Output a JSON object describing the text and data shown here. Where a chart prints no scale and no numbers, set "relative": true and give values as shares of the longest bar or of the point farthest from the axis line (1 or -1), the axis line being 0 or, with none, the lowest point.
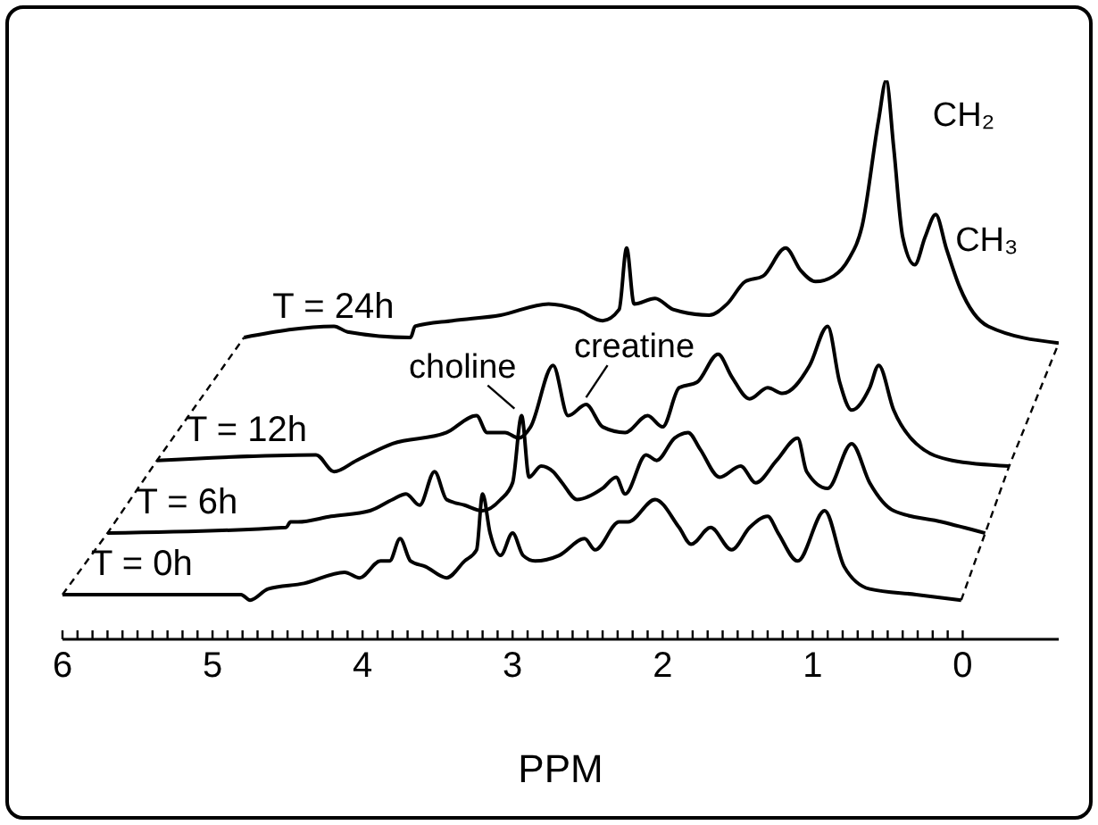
{
  "chart_data": {
    "type": "line",
    "relative": true,
    "xlabel": "PPM",
    "xlim": [
      6,
      -0.64
    ],
    "xticks": [
      6,
      {
        "value": 5.9,
        "label": null
      },
      {
        "value": 5.8,
        "label": null
      },
      {
        "value": 5.7,
        "label": null
      },
      {
        "value": 5.6,
        "label": null
      },
      {
        "value": 5.5,
        "label": null
      },
      {
        "value": 5.4,
        "label": null
      },
      {
        "value": 5.3,
        "label": null
      },
      {
        "value": 5.2,
        "label": null
      },
      {
        "value": 5.1,
        "label": null
      },
      5,
      {
        "value": 4.9,
        "label": null
      },
      {
        "value": 4.8,
        "label": null
      },
      {
        "value": 4.7,
        "label": null
      },
      {
        "value": 4.6,
        "label": null
      },
      {
        "value": 4.5,
        "label": null
      },
      {
        "value": 4.4,
        "label": null
      },
      {
        "value": 4.3,
        "label": null
      },
      {
        "value": 4.2,
        "label": null
      },
      {
        "value": 4.1,
        "label": null
      },
      4,
      {
        "value": 3.9,
        "label": null
      },
      {
        "value": 3.8,
        "label": null
      },
      {
        "value": 3.7,
        "label": null
      },
      {
        "value": 3.6,
        "label": null
      },
      {
        "value": 3.5,
        "label": null
      },
      {
        "value": 3.4,
        "label": null
      },
      {
        "value": 3.3,
        "label": null
      },
      {
        "value": 3.2,
        "label": null
      },
      {
        "value": 3.1,
        "label": null
      },
      3,
      {
        "value": 2.9,
        "label": null
      },
      {
        "value": 2.8,
        "label": null
      },
      {
        "value": 2.7,
        "label": null
      },
      {
        "value": 2.6,
        "label": null
      },
      {
        "value": 2.5,
        "label": null
      },
      {
        "value": 2.4,
        "label": null
      },
      {
        "value": 2.3,
        "label": null
      },
      {
        "value": 2.2,
        "label": null
      },
      {
        "value": 2.1,
        "label": null
      },
      2,
      {
        "value": 1.9,
        "label": null
      },
      {
        "value": 1.8,
        "label": null
      },
      {
        "value": 1.7,
        "label": null
      },
      {
        "value": 1.6,
        "label": null
      },
      {
        "value": 1.5,
        "label": null
      },
      {
        "value": 1.4,
        "label": null
      },
      {
        "value": 1.3,
        "label": null
      },
      {
        "value": 1.2,
        "label": null
      },
      {
        "value": 1.1,
        "label": null
      },
      1,
      {
        "value": 0.9,
        "label": null
      },
      {
        "value": 0.8,
        "label": null
      },
      {
        "value": 0.7,
        "label": null
      },
      {
        "value": 0.6,
        "label": null
      },
      {
        "value": 0.5,
        "label": null
      },
      {
        "value": 0.4,
        "label": null
      },
      {
        "value": 0.3,
        "label": null
      },
      {
        "value": 0.2,
        "label": null
      },
      {
        "value": 0.1,
        "label": null
      },
      0
    ],
    "series": [
      {
        "name": "T = 0h",
        "color": "#000000",
        "x": [
          6.0,
          4.81,
          4.75,
          4.63,
          4.39,
          4.12,
          4.02,
          3.88,
          3.82,
          3.75,
          3.68,
          3.58,
          3.44,
          3.32,
          3.24,
          3.2,
          3.15,
          3.08,
          3.0,
          2.93,
          2.85,
          2.69,
          2.52,
          2.45,
          2.29,
          2.23,
          2.05,
          1.89,
          1.81,
          1.68,
          1.54,
          1.42,
          1.3,
          1.23,
          1.1,
          0.92,
          0.79,
          0.62,
          0.31,
          0.01
        ],
        "values": [
          0.08,
          0.08,
          0.07,
          0.09,
          0.1,
          0.12,
          0.11,
          0.14,
          0.14,
          0.18,
          0.14,
          0.13,
          0.11,
          0.14,
          0.16,
          0.26,
          0.19,
          0.15,
          0.19,
          0.15,
          0.14,
          0.15,
          0.18,
          0.16,
          0.21,
          0.21,
          0.25,
          0.2,
          0.17,
          0.2,
          0.16,
          0.2,
          0.22,
          0.19,
          0.14,
          0.23,
          0.13,
          0.09,
          0.08,
          0.07
        ]
      },
      {
        "name": "T = 6h",
        "color": "#000000",
        "x": [
          5.7,
          4.51,
          4.48,
          4.43,
          4.21,
          3.95,
          3.8,
          3.71,
          3.62,
          3.52,
          3.44,
          3.32,
          3.2,
          3.08,
          3.0,
          2.94,
          2.89,
          2.81,
          2.73,
          2.67,
          2.57,
          2.4,
          2.31,
          2.25,
          2.11,
          2.04,
          1.92,
          1.83,
          1.75,
          1.62,
          1.48,
          1.38,
          1.24,
          1.1,
          1.04,
          0.9,
          0.74,
          0.62,
          0.46,
          0.14,
          -0.15
        ],
        "values": [
          0.19,
          0.2,
          0.21,
          0.21,
          0.22,
          0.23,
          0.25,
          0.26,
          0.24,
          0.3,
          0.25,
          0.24,
          0.23,
          0.25,
          0.28,
          0.4,
          0.29,
          0.31,
          0.3,
          0.28,
          0.25,
          0.27,
          0.29,
          0.26,
          0.33,
          0.32,
          0.36,
          0.37,
          0.34,
          0.29,
          0.31,
          0.28,
          0.32,
          0.36,
          0.3,
          0.27,
          0.35,
          0.28,
          0.23,
          0.21,
          0.19
        ]
      },
      {
        "name": "T = 12h",
        "color": "#000000",
        "x": [
          5.37,
          4.31,
          4.19,
          4.04,
          3.8,
          3.44,
          3.24,
          3.17,
          3.05,
          2.96,
          2.88,
          2.73,
          2.63,
          2.51,
          2.4,
          2.25,
          2.1,
          2.0,
          1.89,
          1.77,
          1.63,
          1.54,
          1.42,
          1.3,
          1.2,
          1.02,
          0.9,
          0.82,
          0.74,
          0.62,
          0.56,
          0.46,
          0.31,
          0.07,
          -0.31
        ],
        "values": [
          0.32,
          0.33,
          0.3,
          0.32,
          0.35,
          0.37,
          0.4,
          0.37,
          0.37,
          0.36,
          0.38,
          0.49,
          0.4,
          0.42,
          0.38,
          0.37,
          0.4,
          0.38,
          0.45,
          0.46,
          0.51,
          0.47,
          0.43,
          0.45,
          0.44,
          0.49,
          0.56,
          0.46,
          0.41,
          0.45,
          0.49,
          0.41,
          0.35,
          0.32,
          0.31
        ]
      },
      {
        "name": "T = 24h",
        "color": "#000000",
        "x": [
          4.79,
          4.19,
          4.1,
          3.68,
          3.65,
          3.4,
          3.08,
          2.76,
          2.57,
          2.4,
          2.29,
          2.24,
          2.19,
          2.05,
          1.93,
          1.69,
          1.57,
          1.45,
          1.33,
          1.18,
          1.08,
          0.98,
          0.86,
          0.76,
          0.67,
          0.56,
          0.51,
          0.46,
          0.4,
          0.32,
          0.25,
          0.18,
          0.11,
          0.02,
          -0.17,
          -0.64
        ],
        "values": [
          0.54,
          0.56,
          0.55,
          0.54,
          0.56,
          0.57,
          0.58,
          0.6,
          0.59,
          0.57,
          0.59,
          0.7,
          0.6,
          0.61,
          0.59,
          0.58,
          0.6,
          0.64,
          0.65,
          0.7,
          0.66,
          0.64,
          0.65,
          0.68,
          0.74,
          0.93,
          1.0,
          0.88,
          0.72,
          0.67,
          0.72,
          0.76,
          0.7,
          0.63,
          0.56,
          0.53
        ]
      }
    ],
    "annotations": [
      {
        "text": "choline",
        "x": 2.94,
        "y": 0.4
      },
      {
        "text": "creatine",
        "x": 2.51,
        "y": 0.42
      },
      {
        "text": "CH₂",
        "x": 0.51,
        "y": 1.0
      },
      {
        "text": "CH₃",
        "x": 0.18,
        "y": 0.76
      }
    ]
  }
}
